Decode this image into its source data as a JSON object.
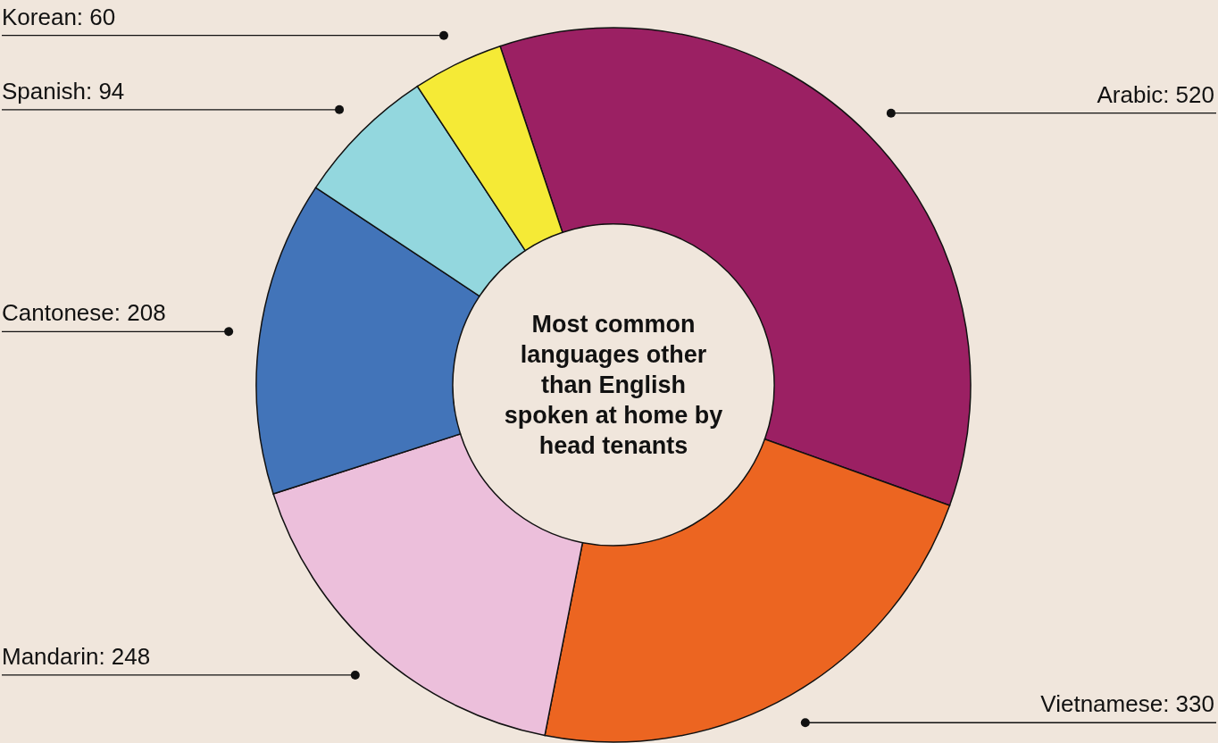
{
  "chart_data": {
    "type": "donut",
    "title": "Most common languages other than English spoken at home by head tenants",
    "categories": [
      "Arabic: 520",
      "Vietnamese: 330",
      "Mandarin: 248",
      "Cantonese: 208",
      "Spanish: 94",
      "Korean: 60"
    ],
    "values": [
      520,
      330,
      248,
      208,
      94,
      60
    ],
    "colors": [
      "#9b2063",
      "#ec6521",
      "#ecbfdb",
      "#4274b9",
      "#93d7de",
      "#f5ea36"
    ],
    "legend": false
  }
}
